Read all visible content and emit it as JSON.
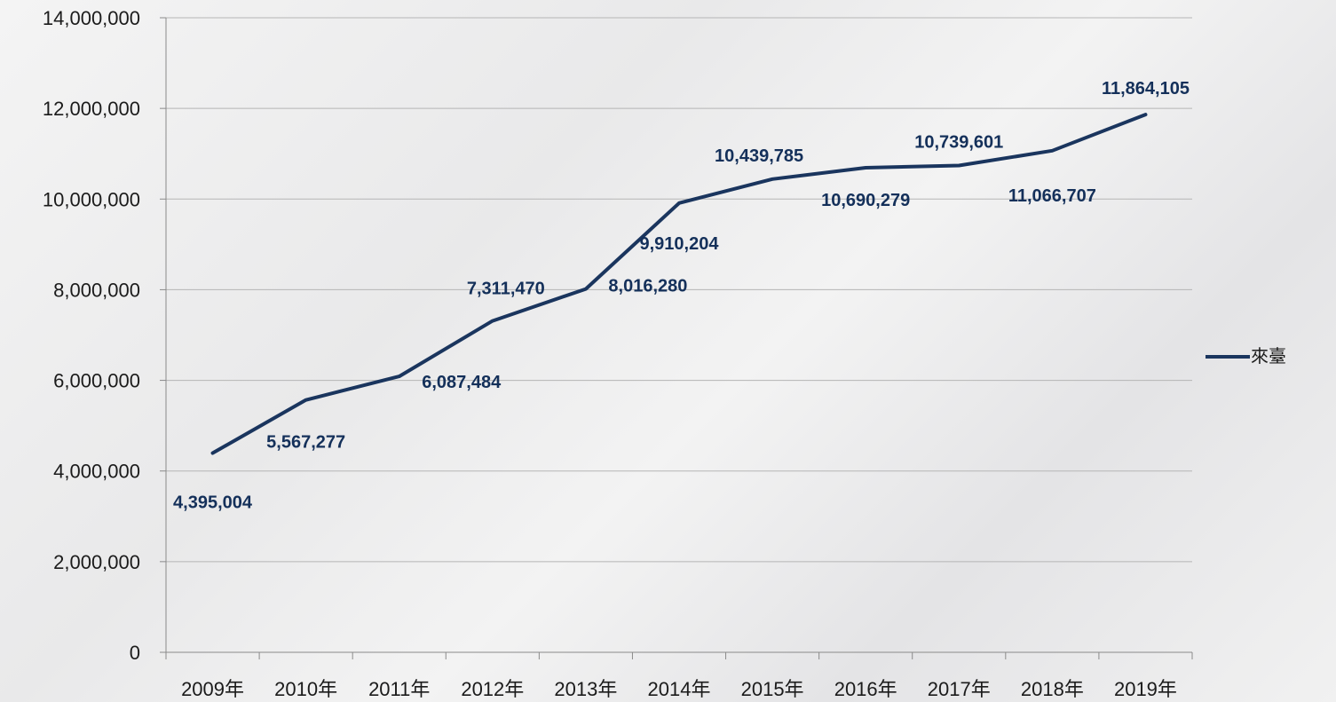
{
  "chart_data": {
    "type": "line",
    "categories": [
      "2009年",
      "2010年",
      "2011年",
      "2012年",
      "2013年",
      "2014年",
      "2015年",
      "2016年",
      "2017年",
      "2018年",
      "2019年"
    ],
    "series": [
      {
        "name": "來臺",
        "values": [
          4395004,
          5567277,
          6087484,
          7311470,
          8016280,
          9910204,
          10439785,
          10690279,
          10739601,
          11066707,
          11864105
        ],
        "data_labels": [
          "4,395,004",
          "5,567,277",
          "6,087,484",
          "7,311,470",
          "8,016,280",
          "9,910,204",
          "10,439,785",
          "10,690,279",
          "10,739,601",
          "11,066,707",
          "11,864,105"
        ]
      }
    ],
    "ylim": [
      0,
      14000000
    ],
    "yticks": [
      0,
      2000000,
      4000000,
      6000000,
      8000000,
      10000000,
      12000000,
      14000000
    ],
    "ytick_labels": [
      "0",
      "2,000,000",
      "4,000,000",
      "6,000,000",
      "8,000,000",
      "10,000,000",
      "12,000,000",
      "14,000,000"
    ],
    "grid": "horizontal",
    "legend_position": "right",
    "colors": {
      "line": "#1a355e",
      "label": "#14305a",
      "grid": "#b5b5b5",
      "axis": "#8a8a8a"
    }
  }
}
